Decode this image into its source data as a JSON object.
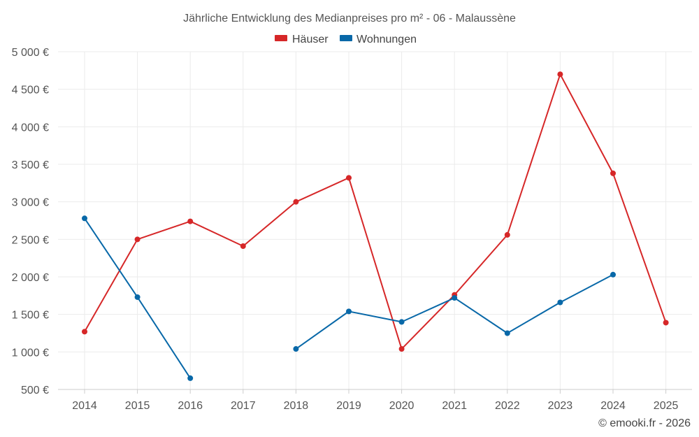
{
  "chart_data": {
    "type": "line",
    "title": "Jährliche Entwicklung des Medianpreises pro m² - 06 - Malaussène",
    "categories": [
      "2014",
      "2015",
      "2016",
      "2017",
      "2018",
      "2019",
      "2020",
      "2021",
      "2022",
      "2023",
      "2024",
      "2025"
    ],
    "ylim": [
      500,
      5000
    ],
    "yticks": [
      500,
      1000,
      1500,
      2000,
      2500,
      3000,
      3500,
      4000,
      4500,
      5000
    ],
    "ytick_labels": [
      "500 €",
      "1 000 €",
      "1 500 €",
      "2 000 €",
      "2 500 €",
      "3 000 €",
      "3 500 €",
      "4 000 €",
      "4 500 €",
      "5 000 €"
    ],
    "grid": true,
    "legend_position": "top-center",
    "series": [
      {
        "name": "Häuser",
        "color": "#d62728",
        "values": [
          1270,
          2500,
          2740,
          2410,
          3000,
          3320,
          1040,
          1760,
          2560,
          4700,
          3380,
          1390
        ]
      },
      {
        "name": "Wohnungen",
        "color": "#0868a8",
        "values": [
          2780,
          1730,
          650,
          null,
          1040,
          1540,
          1400,
          1720,
          1250,
          1660,
          2030,
          null
        ]
      }
    ]
  },
  "credit": "© emooki.fr - 2026"
}
